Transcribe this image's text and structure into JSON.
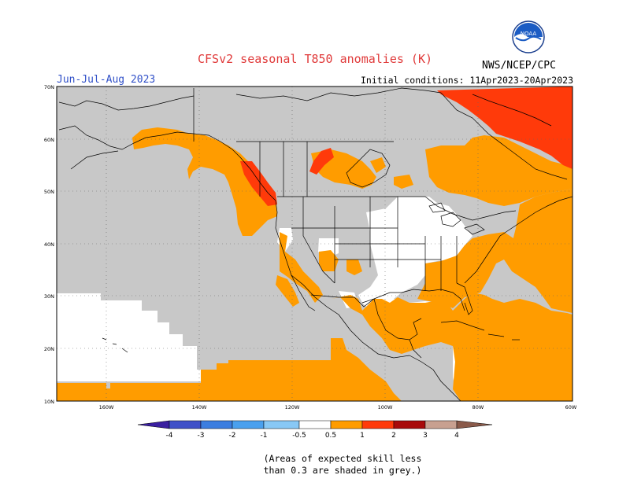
{
  "title": "CFSv2 seasonal T850 anomalies (K)",
  "period": "Jun-Jul-Aug 2023",
  "initial_conditions": "Initial conditions: 11Apr2023-20Apr2023",
  "agency": "NWS/NCEP/CPC",
  "logo_text": "NOAA",
  "map": {
    "lat_labels": [
      "70N",
      "60N",
      "50N",
      "40N",
      "30N",
      "20N",
      "10N"
    ],
    "lon_labels": [
      "160W",
      "140W",
      "120W",
      "100W",
      "80W",
      "60W"
    ]
  },
  "colorbar": {
    "labels": [
      "-4",
      "-3",
      "-2",
      "-1",
      "-0.5",
      "0.5",
      "1",
      "2",
      "3",
      "4"
    ],
    "colors": {
      "lt_m4": "#3a1fa0",
      "m4_m3": "#3f50c8",
      "m3_m2": "#3c7ee0",
      "m2_m1": "#4aa0ee",
      "m1_m05": "#88c8f5",
      "neutral": "#ffffff",
      "p05_p1": "#ff9c00",
      "p1_p2": "#ff3a0a",
      "p2_p3": "#d81a0c",
      "p3_p4": "#a80a0a",
      "gt_p4": "#c8a090",
      "gt_p4b": "#8a5a4a"
    }
  },
  "colors": {
    "grey_low_skill": "#c8c8c8",
    "warm": "#ff9c00",
    "hot": "#ff3a0a",
    "hotter": "#e0200a"
  },
  "note_line1": "(Areas of expected skill less",
  "note_line2": "than 0.3 are shaded in grey.)"
}
